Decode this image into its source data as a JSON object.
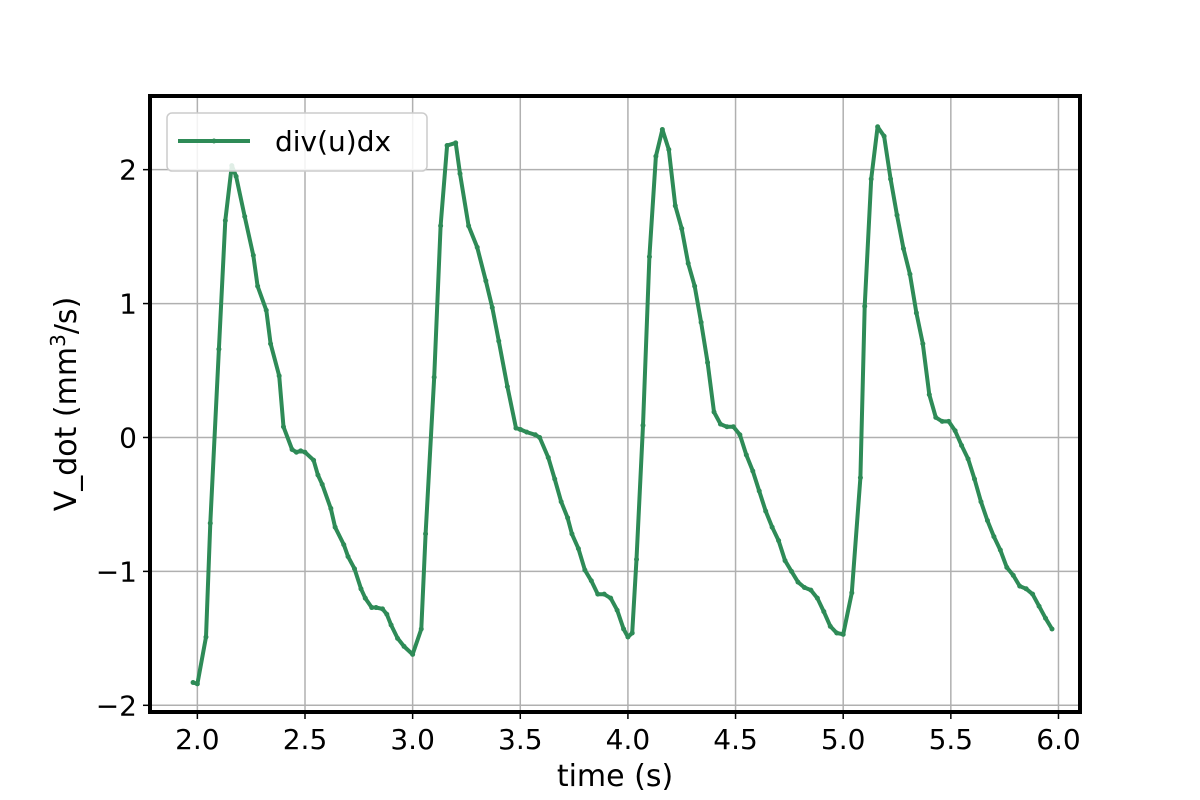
{
  "chart_data": {
    "type": "line",
    "title": "",
    "xlabel": "time (s)",
    "ylabel_main": "V_dot (mm",
    "ylabel_sup": "3",
    "ylabel_tail": "/s)",
    "xlim": [
      1.78,
      6.1
    ],
    "ylim": [
      -2.05,
      2.55
    ],
    "grid": true,
    "legend_position": "top-left",
    "color": "#2e8b57",
    "x_ticks": [
      2.0,
      2.5,
      3.0,
      3.5,
      4.0,
      4.5,
      5.0,
      5.5,
      6.0
    ],
    "x_tick_labels": [
      "2.0",
      "2.5",
      "3.0",
      "3.5",
      "4.0",
      "4.5",
      "5.0",
      "5.5",
      "6.0"
    ],
    "y_ticks": [
      -2,
      -1,
      0,
      1,
      2
    ],
    "y_tick_labels": [
      "−2",
      "−1",
      "0",
      "1",
      "2"
    ],
    "series": [
      {
        "name": "div(u)dx",
        "points": [
          [
            1.98,
            -1.83
          ],
          [
            2.0,
            -1.84
          ],
          [
            2.04,
            -1.49
          ],
          [
            2.06,
            -0.64
          ],
          [
            2.1,
            0.66
          ],
          [
            2.13,
            1.62
          ],
          [
            2.16,
            2.03
          ],
          [
            2.18,
            1.95
          ],
          [
            2.22,
            1.65
          ],
          [
            2.26,
            1.36
          ],
          [
            2.28,
            1.13
          ],
          [
            2.32,
            0.95
          ],
          [
            2.34,
            0.7
          ],
          [
            2.38,
            0.46
          ],
          [
            2.4,
            0.08
          ],
          [
            2.44,
            -0.09
          ],
          [
            2.46,
            -0.11
          ],
          [
            2.48,
            -0.1
          ],
          [
            2.5,
            -0.11
          ],
          [
            2.54,
            -0.17
          ],
          [
            2.56,
            -0.28
          ],
          [
            2.58,
            -0.35
          ],
          [
            2.62,
            -0.53
          ],
          [
            2.64,
            -0.67
          ],
          [
            2.68,
            -0.8
          ],
          [
            2.7,
            -0.89
          ],
          [
            2.73,
            -0.98
          ],
          [
            2.76,
            -1.13
          ],
          [
            2.78,
            -1.2
          ],
          [
            2.81,
            -1.27
          ],
          [
            2.83,
            -1.27
          ],
          [
            2.86,
            -1.28
          ],
          [
            2.88,
            -1.32
          ],
          [
            2.9,
            -1.4
          ],
          [
            2.93,
            -1.5
          ],
          [
            2.96,
            -1.56
          ],
          [
            3.0,
            -1.62
          ],
          [
            3.04,
            -1.43
          ],
          [
            3.06,
            -0.72
          ],
          [
            3.1,
            0.45
          ],
          [
            3.13,
            1.58
          ],
          [
            3.16,
            2.18
          ],
          [
            3.2,
            2.2
          ],
          [
            3.22,
            1.97
          ],
          [
            3.26,
            1.58
          ],
          [
            3.3,
            1.42
          ],
          [
            3.34,
            1.17
          ],
          [
            3.37,
            0.97
          ],
          [
            3.4,
            0.72
          ],
          [
            3.44,
            0.38
          ],
          [
            3.48,
            0.07
          ],
          [
            3.5,
            0.06
          ],
          [
            3.53,
            0.04
          ],
          [
            3.57,
            0.02
          ],
          [
            3.59,
            0.0
          ],
          [
            3.63,
            -0.15
          ],
          [
            3.66,
            -0.31
          ],
          [
            3.69,
            -0.48
          ],
          [
            3.72,
            -0.6
          ],
          [
            3.74,
            -0.72
          ],
          [
            3.77,
            -0.83
          ],
          [
            3.8,
            -0.99
          ],
          [
            3.83,
            -1.07
          ],
          [
            3.86,
            -1.17
          ],
          [
            3.89,
            -1.17
          ],
          [
            3.92,
            -1.2
          ],
          [
            3.95,
            -1.29
          ],
          [
            3.98,
            -1.43
          ],
          [
            4.0,
            -1.49
          ],
          [
            4.02,
            -1.46
          ],
          [
            4.04,
            -0.91
          ],
          [
            4.07,
            0.09
          ],
          [
            4.1,
            1.35
          ],
          [
            4.13,
            2.1
          ],
          [
            4.16,
            2.3
          ],
          [
            4.19,
            2.15
          ],
          [
            4.22,
            1.73
          ],
          [
            4.25,
            1.56
          ],
          [
            4.28,
            1.3
          ],
          [
            4.31,
            1.13
          ],
          [
            4.34,
            0.86
          ],
          [
            4.37,
            0.56
          ],
          [
            4.4,
            0.19
          ],
          [
            4.43,
            0.1
          ],
          [
            4.46,
            0.08
          ],
          [
            4.49,
            0.08
          ],
          [
            4.52,
            0.02
          ],
          [
            4.55,
            -0.13
          ],
          [
            4.58,
            -0.25
          ],
          [
            4.61,
            -0.4
          ],
          [
            4.64,
            -0.55
          ],
          [
            4.67,
            -0.67
          ],
          [
            4.7,
            -0.77
          ],
          [
            4.73,
            -0.92
          ],
          [
            4.76,
            -1.0
          ],
          [
            4.79,
            -1.08
          ],
          [
            4.82,
            -1.12
          ],
          [
            4.85,
            -1.14
          ],
          [
            4.88,
            -1.2
          ],
          [
            4.91,
            -1.3
          ],
          [
            4.94,
            -1.41
          ],
          [
            4.97,
            -1.46
          ],
          [
            5.0,
            -1.47
          ],
          [
            5.04,
            -1.16
          ],
          [
            5.08,
            -0.3
          ],
          [
            5.1,
            0.98
          ],
          [
            5.13,
            1.93
          ],
          [
            5.16,
            2.32
          ],
          [
            5.19,
            2.25
          ],
          [
            5.22,
            1.93
          ],
          [
            5.25,
            1.66
          ],
          [
            5.28,
            1.41
          ],
          [
            5.31,
            1.22
          ],
          [
            5.34,
            0.93
          ],
          [
            5.37,
            0.7
          ],
          [
            5.4,
            0.32
          ],
          [
            5.43,
            0.15
          ],
          [
            5.46,
            0.12
          ],
          [
            5.49,
            0.12
          ],
          [
            5.52,
            0.05
          ],
          [
            5.55,
            -0.06
          ],
          [
            5.58,
            -0.16
          ],
          [
            5.61,
            -0.31
          ],
          [
            5.64,
            -0.48
          ],
          [
            5.67,
            -0.62
          ],
          [
            5.7,
            -0.74
          ],
          [
            5.73,
            -0.84
          ],
          [
            5.76,
            -0.97
          ],
          [
            5.79,
            -1.03
          ],
          [
            5.82,
            -1.11
          ],
          [
            5.85,
            -1.13
          ],
          [
            5.88,
            -1.17
          ],
          [
            5.91,
            -1.26
          ],
          [
            5.94,
            -1.35
          ],
          [
            5.97,
            -1.43
          ]
        ]
      }
    ]
  }
}
